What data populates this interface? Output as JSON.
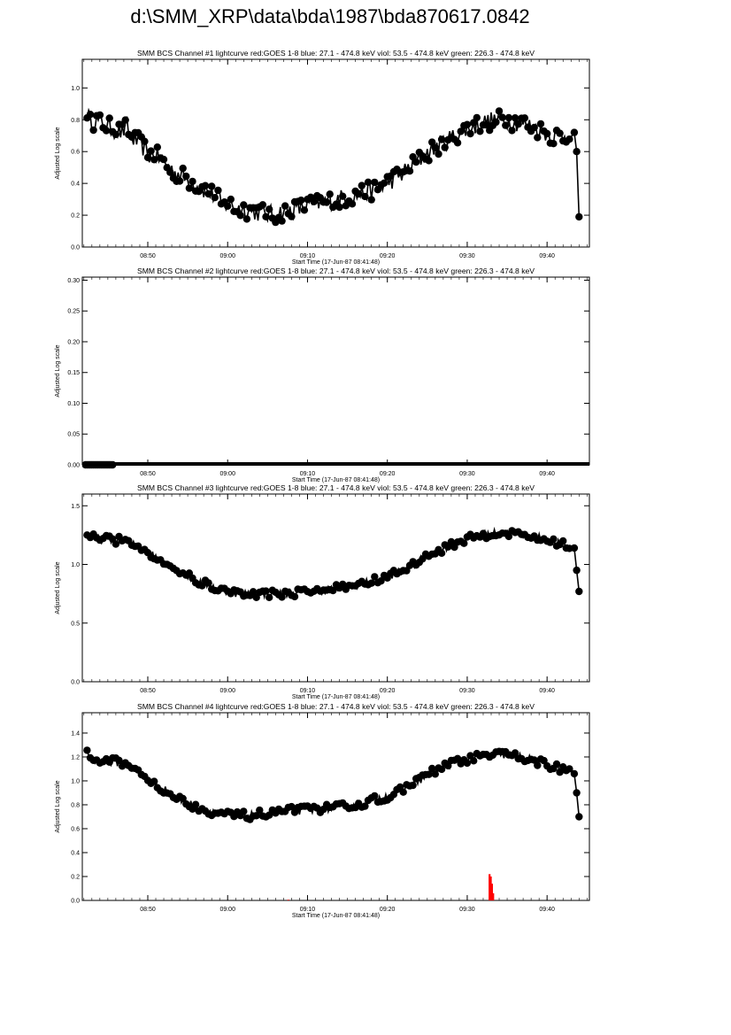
{
  "page": {
    "title": "d:\\SMM_XRP\\data\\bda\\1987\\bda870617.0842"
  },
  "style": {
    "data_color": "#000000",
    "red_series_color": "#ff0000"
  },
  "chart_data": [
    {
      "type": "line",
      "title": "SMM BCS Channel #1 lightcurve  red:GOES 1-8  blue: 27.1 - 474.8 keV  viol: 53.5 - 474.8 keV  green: 226.3 - 474.8 keV",
      "xlabel": "Start Time (17-Jun-87 08:41:48)",
      "ylabel": "Adjusted Log scale",
      "x_unit": "minutes after 08:41:48",
      "xlim": [
        0,
        63.5
      ],
      "ylim": [
        0,
        1.18
      ],
      "x_ticks": [
        8.2,
        18.2,
        28.2,
        38.2,
        48.2,
        58.2
      ],
      "x_tick_labels": [
        "08:50",
        "09:00",
        "09:10",
        "09:20",
        "09:30",
        "09:40"
      ],
      "y_ticks": [
        0.0,
        0.2,
        0.4,
        0.6,
        0.8,
        1.0
      ],
      "y_tick_labels": [
        "0.0",
        "0.2",
        "0.4",
        "0.6",
        "0.8",
        "1.0"
      ],
      "grid": false,
      "marker": "circle",
      "keypoints": [
        [
          0.6,
          0.86
        ],
        [
          1.0,
          0.78
        ],
        [
          1.6,
          0.8
        ],
        [
          2.2,
          0.78
        ],
        [
          3.0,
          0.76
        ],
        [
          4.0,
          0.74
        ],
        [
          5.0,
          0.72
        ],
        [
          5.6,
          0.76
        ],
        [
          6.0,
          0.7
        ],
        [
          6.6,
          0.67
        ],
        [
          7.0,
          0.66
        ],
        [
          7.6,
          0.63
        ],
        [
          8.2,
          0.58
        ],
        [
          9.0,
          0.58
        ],
        [
          10.0,
          0.55
        ],
        [
          11.0,
          0.49
        ],
        [
          12.0,
          0.46
        ],
        [
          13.0,
          0.43
        ],
        [
          14.0,
          0.4
        ],
        [
          15.0,
          0.37
        ],
        [
          16.0,
          0.34
        ],
        [
          17.0,
          0.31
        ],
        [
          17.6,
          0.25
        ],
        [
          18.2,
          0.28
        ],
        [
          19.0,
          0.25
        ],
        [
          20.0,
          0.24
        ],
        [
          21.0,
          0.23
        ],
        [
          22.0,
          0.22
        ],
        [
          23.0,
          0.21
        ],
        [
          24.0,
          0.2
        ],
        [
          25.0,
          0.22
        ],
        [
          26.0,
          0.23
        ],
        [
          27.0,
          0.24
        ],
        [
          28.0,
          0.26
        ],
        [
          29.0,
          0.27
        ],
        [
          30.0,
          0.28
        ],
        [
          31.0,
          0.29
        ],
        [
          32.0,
          0.3
        ],
        [
          33.0,
          0.31
        ],
        [
          34.0,
          0.32
        ],
        [
          35.0,
          0.34
        ],
        [
          36.0,
          0.35
        ],
        [
          37.0,
          0.37
        ],
        [
          38.0,
          0.4
        ],
        [
          39.0,
          0.43
        ],
        [
          40.0,
          0.46
        ],
        [
          41.0,
          0.5
        ],
        [
          42.0,
          0.54
        ],
        [
          43.0,
          0.58
        ],
        [
          44.0,
          0.62
        ],
        [
          45.0,
          0.65
        ],
        [
          46.0,
          0.68
        ],
        [
          47.0,
          0.71
        ],
        [
          48.0,
          0.74
        ],
        [
          49.0,
          0.76
        ],
        [
          50.0,
          0.78
        ],
        [
          51.0,
          0.79
        ],
        [
          52.0,
          0.8
        ],
        [
          53.0,
          0.8
        ],
        [
          54.0,
          0.79
        ],
        [
          55.0,
          0.78
        ],
        [
          56.0,
          0.76
        ],
        [
          57.0,
          0.74
        ],
        [
          58.0,
          0.72
        ],
        [
          59.0,
          0.7
        ],
        [
          60.0,
          0.7
        ],
        [
          61.0,
          0.71
        ],
        [
          61.6,
          0.72
        ],
        [
          61.9,
          0.6
        ],
        [
          62.2,
          0.19
        ]
      ],
      "jitter": 0.06,
      "red_bars": []
    },
    {
      "type": "line",
      "title": "SMM BCS Channel #2 lightcurve  red:GOES 1-8  blue: 27.1 - 474.8 keV  viol: 53.5 - 474.8 keV  green: 226.3 - 474.8 keV",
      "xlabel": "Start Time (17-Jun-87 08:41:48)",
      "ylabel": "Adjusted Log scale",
      "x_unit": "minutes after 08:41:48",
      "xlim": [
        0,
        63.5
      ],
      "ylim": [
        0,
        0.305
      ],
      "x_ticks": [
        8.2,
        18.2,
        28.2,
        38.2,
        48.2,
        58.2
      ],
      "x_tick_labels": [
        "08:50",
        "09:00",
        "09:10",
        "09:20",
        "09:30",
        "09:40"
      ],
      "y_ticks": [
        0.0,
        0.05,
        0.1,
        0.15,
        0.2,
        0.25,
        0.3
      ],
      "y_tick_labels": [
        "0.00",
        "0.05",
        "0.10",
        "0.15",
        "0.20",
        "0.25",
        "0.30"
      ],
      "grid": false,
      "marker": "circle",
      "keypoints": [
        [
          0.4,
          0.0
        ],
        [
          2.0,
          0.0
        ],
        [
          2.6,
          0.0
        ],
        [
          3.6,
          0.0
        ],
        [
          63.2,
          0.0
        ]
      ],
      "jitter": 0.0,
      "red_bars": []
    },
    {
      "type": "line",
      "title": "SMM BCS Channel #3 lightcurve  red:GOES 1-8  blue: 27.1 - 474.8 keV  viol: 53.5 - 474.8 keV  green: 226.3 - 474.8 keV",
      "xlabel": "Start Time (17-Jun-87 08:41:48)",
      "ylabel": "Adjusted Log scale",
      "x_unit": "minutes after 08:41:48",
      "xlim": [
        0,
        63.5
      ],
      "ylim": [
        0,
        1.6
      ],
      "x_ticks": [
        8.2,
        18.2,
        28.2,
        38.2,
        48.2,
        58.2
      ],
      "x_tick_labels": [
        "08:50",
        "09:00",
        "09:10",
        "09:20",
        "09:30",
        "09:40"
      ],
      "y_ticks": [
        0.0,
        0.5,
        1.0,
        1.5
      ],
      "y_tick_labels": [
        "0.0",
        "0.5",
        "1.0",
        "1.5"
      ],
      "grid": false,
      "marker": "circle",
      "keypoints": [
        [
          0.6,
          1.27
        ],
        [
          1.0,
          1.24
        ],
        [
          1.6,
          1.22
        ],
        [
          3.6,
          1.21
        ],
        [
          4.0,
          1.21
        ],
        [
          5.0,
          1.2
        ],
        [
          6.0,
          1.18
        ],
        [
          7.0,
          1.15
        ],
        [
          8.0,
          1.12
        ],
        [
          9.0,
          1.07
        ],
        [
          10.0,
          1.03
        ],
        [
          11.0,
          0.99
        ],
        [
          12.0,
          0.95
        ],
        [
          13.0,
          0.91
        ],
        [
          14.0,
          0.87
        ],
        [
          15.0,
          0.84
        ],
        [
          16.0,
          0.82
        ],
        [
          17.0,
          0.79
        ],
        [
          18.0,
          0.77
        ],
        [
          19.0,
          0.76
        ],
        [
          20.0,
          0.75
        ],
        [
          21.0,
          0.75
        ],
        [
          22.0,
          0.75
        ],
        [
          23.0,
          0.75
        ],
        [
          24.0,
          0.75
        ],
        [
          25.0,
          0.75
        ],
        [
          26.0,
          0.76
        ],
        [
          27.0,
          0.76
        ],
        [
          28.0,
          0.77
        ],
        [
          29.0,
          0.78
        ],
        [
          30.0,
          0.78
        ],
        [
          31.0,
          0.79
        ],
        [
          32.0,
          0.8
        ],
        [
          33.0,
          0.81
        ],
        [
          34.0,
          0.82
        ],
        [
          35.0,
          0.84
        ],
        [
          36.0,
          0.85
        ],
        [
          37.0,
          0.87
        ],
        [
          38.0,
          0.89
        ],
        [
          39.0,
          0.92
        ],
        [
          40.0,
          0.95
        ],
        [
          41.0,
          0.98
        ],
        [
          42.0,
          1.02
        ],
        [
          43.0,
          1.06
        ],
        [
          44.0,
          1.1
        ],
        [
          45.0,
          1.13
        ],
        [
          46.0,
          1.16
        ],
        [
          47.0,
          1.19
        ],
        [
          48.0,
          1.21
        ],
        [
          49.0,
          1.23
        ],
        [
          50.0,
          1.25
        ],
        [
          51.0,
          1.26
        ],
        [
          52.0,
          1.27
        ],
        [
          53.0,
          1.27
        ],
        [
          54.0,
          1.26
        ],
        [
          55.0,
          1.25
        ],
        [
          56.0,
          1.24
        ],
        [
          57.0,
          1.23
        ],
        [
          58.0,
          1.21
        ],
        [
          59.0,
          1.19
        ],
        [
          60.0,
          1.17
        ],
        [
          61.0,
          1.15
        ],
        [
          61.6,
          1.14
        ],
        [
          61.9,
          0.95
        ],
        [
          62.2,
          0.77
        ]
      ],
      "jitter": 0.035,
      "red_bars": []
    },
    {
      "type": "line",
      "title": "SMM BCS Channel #4 lightcurve  red:GOES 1-8  blue: 27.1 - 474.8 keV  viol: 53.5 - 474.8 keV  green: 226.3 - 474.8 keV",
      "xlabel": "Start Time (17-Jun-87 08:41:48)",
      "ylabel": "Adjusted Log scale",
      "x_unit": "minutes after 08:41:48",
      "xlim": [
        0,
        63.5
      ],
      "ylim": [
        0,
        1.57
      ],
      "x_ticks": [
        8.2,
        18.2,
        28.2,
        38.2,
        48.2,
        58.2
      ],
      "x_tick_labels": [
        "08:50",
        "09:00",
        "09:10",
        "09:20",
        "09:30",
        "09:40"
      ],
      "y_ticks": [
        0.0,
        0.2,
        0.4,
        0.6,
        0.8,
        1.0,
        1.2,
        1.4
      ],
      "y_tick_labels": [
        "0.0",
        "0.2",
        "0.4",
        "0.6",
        "0.8",
        "1.0",
        "1.2",
        "1.4"
      ],
      "grid": false,
      "marker": "circle",
      "keypoints": [
        [
          0.6,
          1.24
        ],
        [
          1.0,
          1.2
        ],
        [
          1.6,
          1.17
        ],
        [
          3.6,
          1.16
        ],
        [
          4.0,
          1.16
        ],
        [
          5.0,
          1.15
        ],
        [
          6.0,
          1.12
        ],
        [
          7.0,
          1.08
        ],
        [
          8.0,
          1.03
        ],
        [
          9.0,
          0.98
        ],
        [
          10.0,
          0.94
        ],
        [
          11.0,
          0.89
        ],
        [
          12.0,
          0.85
        ],
        [
          13.0,
          0.82
        ],
        [
          14.0,
          0.79
        ],
        [
          15.0,
          0.77
        ],
        [
          16.0,
          0.75
        ],
        [
          17.0,
          0.73
        ],
        [
          18.0,
          0.72
        ],
        [
          19.0,
          0.71
        ],
        [
          20.0,
          0.71
        ],
        [
          21.0,
          0.71
        ],
        [
          22.0,
          0.72
        ],
        [
          23.0,
          0.72
        ],
        [
          24.0,
          0.73
        ],
        [
          25.0,
          0.74
        ],
        [
          26.0,
          0.75
        ],
        [
          27.0,
          0.75
        ],
        [
          28.0,
          0.76
        ],
        [
          29.0,
          0.76
        ],
        [
          30.0,
          0.77
        ],
        [
          31.0,
          0.77
        ],
        [
          32.0,
          0.78
        ],
        [
          33.0,
          0.79
        ],
        [
          34.0,
          0.8
        ],
        [
          35.0,
          0.81
        ],
        [
          36.0,
          0.83
        ],
        [
          37.0,
          0.85
        ],
        [
          38.0,
          0.87
        ],
        [
          39.0,
          0.89
        ],
        [
          40.0,
          0.92
        ],
        [
          41.0,
          0.96
        ],
        [
          42.0,
          1.0
        ],
        [
          43.0,
          1.04
        ],
        [
          44.0,
          1.08
        ],
        [
          45.0,
          1.11
        ],
        [
          46.0,
          1.14
        ],
        [
          47.0,
          1.16
        ],
        [
          48.0,
          1.18
        ],
        [
          49.0,
          1.19
        ],
        [
          50.0,
          1.2
        ],
        [
          51.0,
          1.21
        ],
        [
          52.0,
          1.22
        ],
        [
          53.0,
          1.22
        ],
        [
          54.0,
          1.21
        ],
        [
          55.0,
          1.2
        ],
        [
          56.0,
          1.18
        ],
        [
          57.0,
          1.16
        ],
        [
          58.0,
          1.14
        ],
        [
          59.0,
          1.12
        ],
        [
          60.0,
          1.1
        ],
        [
          61.0,
          1.08
        ],
        [
          61.6,
          1.06
        ],
        [
          61.9,
          0.9
        ],
        [
          62.2,
          0.7
        ]
      ],
      "jitter": 0.035,
      "red_bars": [
        [
          25.8,
          0.006
        ],
        [
          51.0,
          0.22
        ],
        [
          51.15,
          0.2
        ],
        [
          51.3,
          0.14
        ],
        [
          51.45,
          0.06
        ]
      ]
    }
  ]
}
